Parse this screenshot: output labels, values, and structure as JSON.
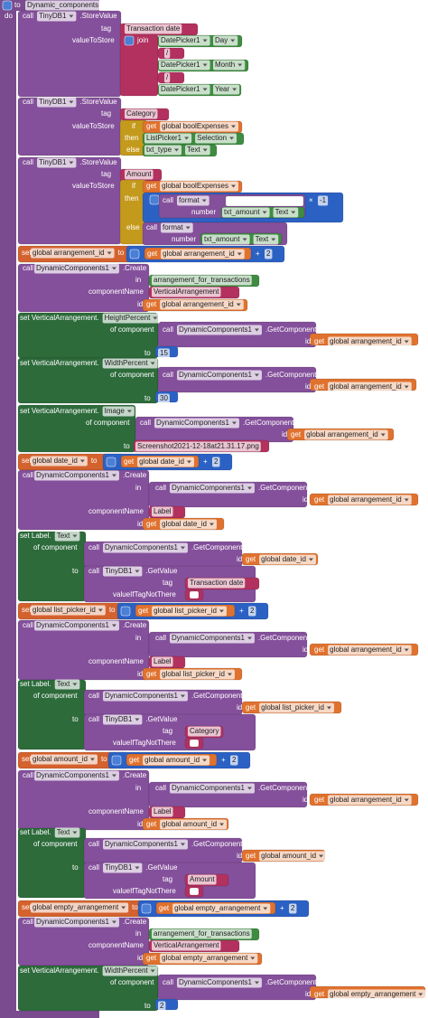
{
  "procedure": {
    "to": "to",
    "name": "Dynamic_components",
    "do": "do"
  },
  "statements": [
    [
      "call",
      "TinyDB1",
      ".StoreValue",
      "tag",
      "Transaction date",
      "valueToStore",
      "join",
      "DatePicker1",
      "Day",
      "/",
      "DatePicker1",
      "Month",
      "/",
      "DatePicker1",
      "Year"
    ],
    [
      "call",
      "TinyDB1",
      ".StoreValue",
      "tag",
      "Category",
      "valueToStore",
      "if",
      "get",
      "global boolExpenses",
      "then",
      "ListPicker1",
      "Selection",
      "else",
      "txt_type",
      "Text"
    ],
    [
      "call",
      "TinyDB1",
      ".StoreValue",
      "tag",
      "Amount",
      "valueToStore",
      "if",
      "get",
      "global boolExpenses",
      "then",
      "call",
      "format",
      "×",
      "-1",
      "number",
      "txt_amount",
      "Text",
      "else",
      "call",
      "format",
      "number",
      "txt_amount",
      "Text"
    ],
    [
      "set",
      "global arrangement_id",
      "to",
      "get",
      "global arrangement_id",
      "+",
      "2"
    ],
    [
      "call",
      "DynamicComponents1",
      ".Create",
      "in",
      "arrangement_for_transactions",
      "componentName",
      "VerticalArrangement",
      "id",
      "get",
      "global arrangement_id"
    ],
    [
      "set VerticalArrangement.",
      "HeightPercent",
      "of component",
      "call",
      "DynamicComponents1",
      ".GetComponent",
      "id",
      "get",
      "global arrangement_id",
      "to",
      "15"
    ],
    [
      "set VerticalArrangement.",
      "WidthPercent",
      "of component",
      "call",
      "DynamicComponents1",
      ".GetComponent",
      "id",
      "get",
      "global arrangement_id",
      "to",
      "30"
    ],
    [
      "set VerticalArrangement.",
      "Image",
      "of component",
      "call",
      "DynamicComponents1",
      ".GetComponent",
      "id",
      "get",
      "global arrangement_id",
      "to",
      "Screenshot2021-12-18at21.31.17.png"
    ],
    [
      "set",
      "global date_id",
      "to",
      "get",
      "global date_id",
      "+",
      "2"
    ],
    [
      "call",
      "DynamicComponents1",
      ".Create",
      "in",
      "call",
      "DynamicComponents1",
      ".GetComponent",
      "id",
      "get",
      "global arrangement_id",
      "componentName",
      "Label",
      "id",
      "get",
      "global date_id"
    ],
    [
      "set Label.",
      "Text",
      "of component",
      "call",
      "DynamicComponents1",
      ".GetComponent",
      "id",
      "get",
      "global date_id",
      "to",
      "call",
      "TinyDB1",
      ".GetValue",
      "tag",
      "Transaction date",
      "valueIfTagNotThere"
    ],
    [
      "set",
      "global list_picker_id",
      "to",
      "get",
      "global list_picker_id",
      "+",
      "2"
    ],
    [
      "call",
      "DynamicComponents1",
      ".Create",
      "in",
      "call",
      "DynamicComponents1",
      ".GetComponent",
      "id",
      "get",
      "global arrangement_id",
      "componentName",
      "Label",
      "id",
      "get",
      "global list_picker_id"
    ],
    [
      "set Label.",
      "Text",
      "of component",
      "call",
      "DynamicComponents1",
      ".GetComponent",
      "id",
      "get",
      "global list_picker_id",
      "to",
      "call",
      "TinyDB1",
      ".GetValue",
      "tag",
      "Category",
      "valueIfTagNotThere"
    ],
    [
      "set",
      "global amount_id",
      "to",
      "get",
      "global amount_id",
      "+",
      "2"
    ],
    [
      "call",
      "DynamicComponents1",
      ".Create",
      "in",
      "call",
      "DynamicComponents1",
      ".GetComponent",
      "id",
      "get",
      "global arrangement_id",
      "componentName",
      "Label",
      "id",
      "get",
      "global amount_id"
    ],
    [
      "set Label.",
      "Text",
      "of component",
      "call",
      "DynamicComponents1",
      ".GetComponent",
      "id",
      "get",
      "global amount_id",
      "to",
      "call",
      "TinyDB1",
      ".GetValue",
      "tag",
      "Amount",
      "valueIfTagNotThere"
    ],
    [
      "set",
      "global empty_arrangement",
      "to",
      "get",
      "global empty_arrangement",
      "+",
      "2"
    ],
    [
      "call",
      "DynamicComponents1",
      ".Create",
      "in",
      "arrangement_for_transactions",
      "componentName",
      "VerticalArrangement",
      "id",
      "get",
      "global empty_arrangement"
    ],
    [
      "set VerticalArrangement.",
      "WidthPercent",
      "of component",
      "call",
      "DynamicComponents1",
      ".GetComponent",
      "id",
      "get",
      "global empty_arrangement",
      "to",
      "2"
    ]
  ]
}
